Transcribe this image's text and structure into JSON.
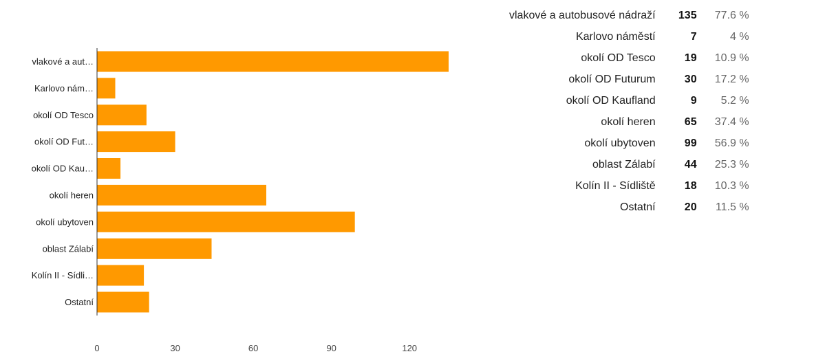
{
  "colors": {
    "bar": "#ff9900",
    "axis": "#333333",
    "text": "#222222",
    "tick": "#444444"
  },
  "chart_data": {
    "type": "bar",
    "orientation": "horizontal",
    "categories": [
      "vlakové a aut…",
      "Karlovo nám…",
      "okolí OD Tesco",
      "okolí OD Fut…",
      "okolí OD Kau…",
      "okolí heren",
      "okolí ubytoven",
      "oblast Zálabí",
      "Kolín II - Sídli…",
      "Ostatní"
    ],
    "values": [
      135,
      7,
      19,
      30,
      9,
      65,
      99,
      44,
      18,
      20
    ],
    "xlim": [
      0,
      135
    ],
    "xticks": [
      0,
      30,
      60,
      90,
      120
    ],
    "xlabel": "",
    "ylabel": "",
    "grid": false,
    "legend": "none"
  },
  "summary": {
    "rows": [
      {
        "label": "vlakové a autobusové nádraží",
        "count": "135",
        "percent": "77.6 %"
      },
      {
        "label": "Karlovo náměstí",
        "count": "7",
        "percent": "4 %"
      },
      {
        "label": "okolí OD Tesco",
        "count": "19",
        "percent": "10.9 %"
      },
      {
        "label": "okolí OD Futurum",
        "count": "30",
        "percent": "17.2 %"
      },
      {
        "label": "okolí OD Kaufland",
        "count": "9",
        "percent": "5.2 %"
      },
      {
        "label": "okolí heren",
        "count": "65",
        "percent": "37.4 %"
      },
      {
        "label": "okolí ubytoven",
        "count": "99",
        "percent": "56.9 %"
      },
      {
        "label": "oblast Zálabí",
        "count": "44",
        "percent": "25.3 %"
      },
      {
        "label": "Kolín II - Sídliště",
        "count": "18",
        "percent": "10.3 %"
      },
      {
        "label": "Ostatní",
        "count": "20",
        "percent": "11.5 %"
      }
    ]
  }
}
